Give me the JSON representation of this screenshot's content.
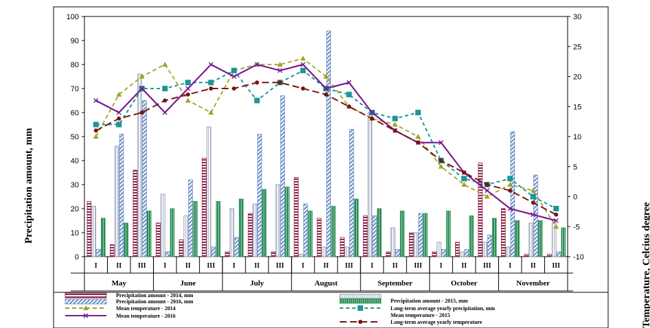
{
  "chart_data": {
    "type": "bar",
    "ylabel_left": "Precipitation  amount,  mm",
    "ylabel_right": "Temperature,  Celcius  degree",
    "ylim_left": [
      0,
      100
    ],
    "yticks_left": [
      "0",
      "10",
      "20",
      "30",
      "40",
      "50",
      "60",
      "70",
      "80",
      "90",
      "100"
    ],
    "ylim_right": [
      -10,
      30
    ],
    "yticks_right": [
      "-10",
      "-5",
      "0",
      "5",
      "10",
      "15",
      "20",
      "25",
      "30"
    ],
    "months": [
      "May",
      "June",
      "July",
      "August",
      "September",
      "October",
      "November"
    ],
    "decades": [
      "I",
      "II",
      "III"
    ],
    "bar_series": [
      {
        "name": "Precipitation amount - 2014, mm",
        "values": [
          23,
          5,
          36,
          14,
          7,
          41,
          2,
          18,
          2,
          33,
          16,
          8,
          17,
          2,
          10,
          2,
          6,
          39,
          20,
          1,
          1
        ]
      },
      {
        "name": "Precipitation amount - 2015, mm",
        "values": [
          16,
          14,
          19,
          20,
          23,
          23,
          24,
          28,
          29,
          19,
          21,
          24,
          20,
          19,
          18,
          19,
          17,
          16,
          15,
          15,
          12
        ]
      },
      {
        "name": "Precipitation amount - 2016, mm",
        "values": [
          3,
          51,
          65,
          2,
          32,
          4,
          8,
          51,
          67,
          22,
          94,
          53,
          17,
          3,
          18,
          3,
          3,
          9,
          52,
          34,
          2
        ]
      },
      {
        "name": "Long-term average yearly precipitation, mm",
        "values": [
          21,
          46,
          76,
          26,
          17,
          54,
          20,
          22,
          30,
          1,
          4,
          4,
          60,
          12,
          10,
          6,
          2,
          6,
          4,
          14,
          14
        ]
      }
    ],
    "line_series": [
      {
        "name": "Mean temperature - 2014",
        "values": [
          10,
          17,
          20,
          22,
          16,
          14,
          21,
          22,
          22,
          23,
          20,
          15,
          13,
          12,
          10,
          5,
          2,
          0,
          2,
          1,
          -5
        ]
      },
      {
        "name": "Mean temperature - 2015",
        "values": [
          12,
          12,
          18,
          18,
          19,
          19,
          21,
          16,
          19,
          21,
          18,
          17,
          14,
          13,
          14,
          6,
          3,
          2,
          3,
          0,
          -2
        ]
      },
      {
        "name": "Mean temperature - 2016",
        "values": [
          16,
          14,
          18,
          14,
          18,
          22,
          20,
          22,
          21,
          22,
          18,
          19,
          14,
          11,
          9,
          9,
          4,
          1,
          -2,
          -3,
          -4
        ]
      },
      {
        "name": "Long-term average yearly temperature",
        "values": [
          11,
          13,
          14,
          16,
          17,
          18,
          18,
          19,
          19,
          18,
          17,
          15,
          13,
          11,
          9,
          6,
          4,
          2,
          1,
          -1,
          -3
        ]
      }
    ],
    "legend_placement": "bottom",
    "grid": false,
    "colors": {
      "p2014": "#8b2346",
      "p2015": "#2e8b57",
      "p2016": "#6a8fc7",
      "plong": "#bfc5d6",
      "t2014": "#a3a324",
      "t2015": "#1f9595",
      "t2016": "#7a1b8f",
      "tlong": "#7a1414"
    }
  }
}
